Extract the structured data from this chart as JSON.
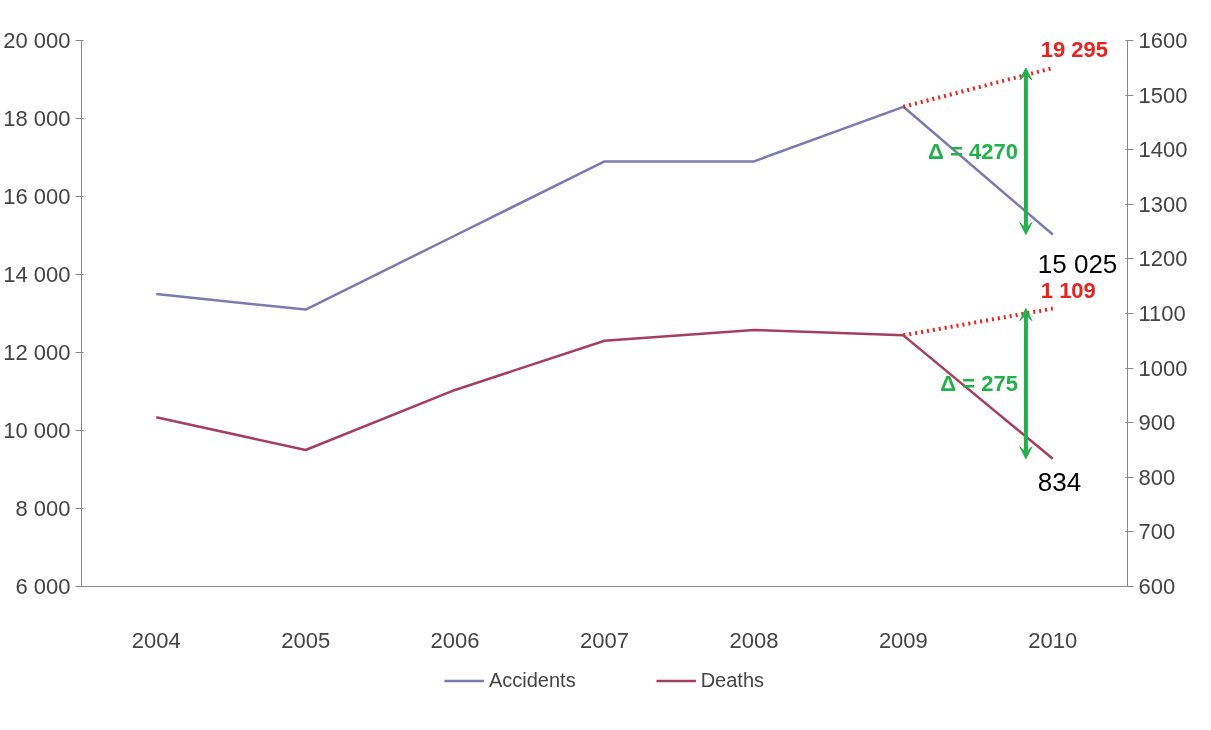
{
  "chart_data": {
    "type": "line",
    "categories": [
      "2004",
      "2005",
      "2006",
      "2007",
      "2008",
      "2009",
      "2010"
    ],
    "series": [
      {
        "name": "Accidents",
        "color": "#7b7bb0",
        "values": [
          13500,
          13100,
          15000,
          16900,
          16900,
          18300,
          15025
        ],
        "value_labels": [
          null,
          null,
          null,
          null,
          null,
          null,
          "15 025"
        ]
      },
      {
        "name": "Deaths",
        "color": "#a3405f",
        "axis": "y2",
        "values": [
          910,
          850,
          960,
          1050,
          1070,
          1060,
          834
        ],
        "value_labels": [
          null,
          null,
          null,
          null,
          null,
          null,
          "834"
        ]
      },
      {
        "color": "#e5231f",
        "values": [
          null,
          null,
          null,
          null,
          null,
          18300,
          19295
        ],
        "line_style": "dotted",
        "value_labels": [
          null,
          null,
          null,
          null,
          null,
          null,
          "19 295"
        ]
      },
      {
        "color": "#e5231f",
        "axis": "y2",
        "values": [
          null,
          null,
          null,
          null,
          null,
          1060,
          1109
        ],
        "line_style": "dotted",
        "value_labels": [
          null,
          null,
          null,
          null,
          null,
          null,
          "1 109"
        ]
      }
    ],
    "annotations": [
      "Δ = 4270",
      "Δ = 275"
    ],
    "ylim": [
      6000,
      20000
    ],
    "yticks": [
      {
        "value": 6000,
        "label": "6 000"
      },
      {
        "value": 8000,
        "label": "8 000"
      },
      {
        "value": 10000,
        "label": "10 000"
      },
      {
        "value": 12000,
        "label": "12 000"
      },
      {
        "value": 14000,
        "label": "14 000"
      },
      {
        "value": 16000,
        "label": "16 000"
      },
      {
        "value": 18000,
        "label": "18 000"
      },
      {
        "value": 20000,
        "label": "20 000"
      }
    ],
    "y2lim": [
      600,
      1600
    ],
    "y2ticks": [
      600,
      700,
      800,
      900,
      1000,
      1100,
      1200,
      1300,
      1400,
      1500,
      1600
    ],
    "grid": false,
    "legend": "bottom",
    "marker": "none",
    "line_style": "solid"
  }
}
